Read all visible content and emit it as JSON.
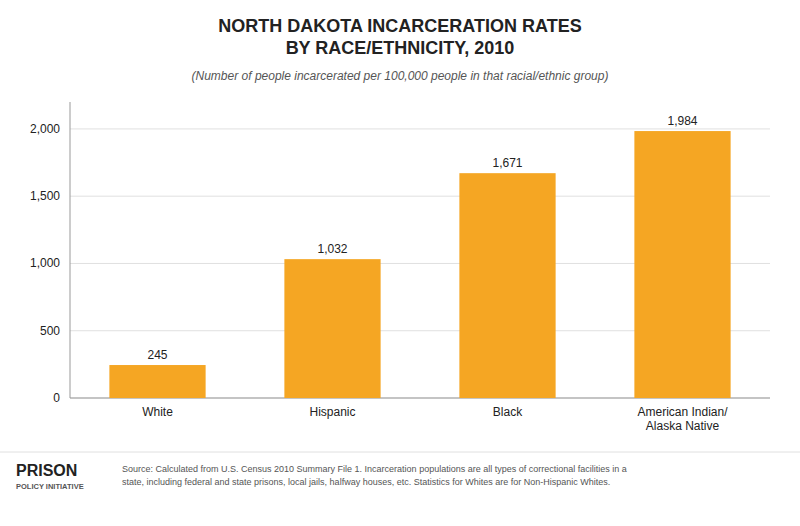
{
  "chart_data": {
    "type": "bar",
    "title": "NORTH DAKOTA INCARCERATION RATES\nBY RACE/ETHNICITY, 2010",
    "subtitle": "(Number of people incarcerated per 100,000 people in that racial/ethnic group)",
    "categories": [
      "White",
      "Hispanic",
      "Black",
      "American Indian/\nAlaska Native"
    ],
    "values": [
      245,
      1032,
      1671,
      1984
    ],
    "value_labels": [
      "245",
      "1,032",
      "1,671",
      "1,984"
    ],
    "data_labels": true,
    "color": "#F5A623",
    "ylim": [
      0,
      2200
    ],
    "yticks": [
      0,
      500,
      {
        "value": 1000,
        "label": "1,000"
      },
      {
        "value": 1500,
        "label": "1,500"
      },
      {
        "value": 2000,
        "label": "2,000"
      }
    ],
    "grid": true,
    "annotations": [
      "Source: Calculated from U.S. Census 2010 Summary File 1. Incarceration populations are all types of correctional facilities in a\nstate, including federal and state prisons, local jails, halfway houses, etc. Statistics for Whites are for Non-Hispanic Whites.",
      "PRISON",
      "POLICY INITIATIVE"
    ]
  }
}
